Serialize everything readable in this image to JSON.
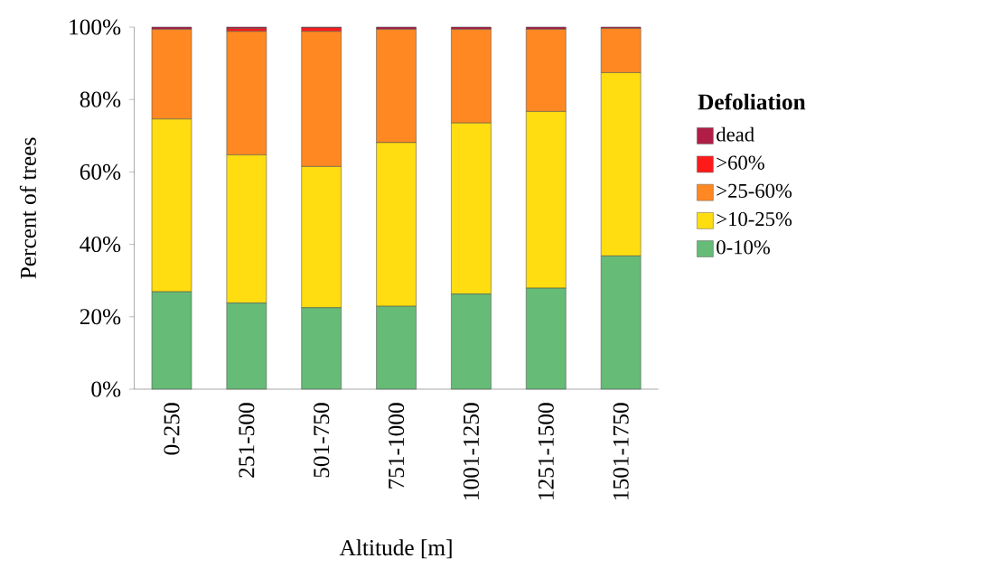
{
  "chart_data": {
    "type": "bar",
    "stacked": true,
    "xlabel": "Altitude [m]",
    "ylabel": "Percent of trees",
    "legend_title": "**Defoliation**",
    "categories": [
      "0-250",
      "251-500",
      "501-750",
      "751-1000",
      "1001-1250",
      "1251-1500",
      "1501-1750"
    ],
    "series": [
      {
        "name": "0-10%",
        "color": "#66bb77",
        "values": [
          26.9,
          23.8,
          22.5,
          22.9,
          26.3,
          27.9,
          36.8
        ]
      },
      {
        "name": ">10-25%",
        "color": "#ffdd11",
        "values": [
          47.7,
          40.9,
          39.0,
          45.2,
          47.2,
          48.8,
          50.6
        ]
      },
      {
        "name": ">25-60%",
        "color": "#ff8822",
        "values": [
          24.8,
          34.1,
          37.3,
          31.3,
          25.9,
          22.7,
          12.2
        ]
      },
      {
        "name": ">60%",
        "color": "#ff1a1a",
        "values": [
          0,
          0.8,
          1.0,
          0,
          0,
          0,
          0
        ]
      },
      {
        "name": "dead",
        "color": "#b01e48",
        "values": [
          0.6,
          0.4,
          0.2,
          0.6,
          0.6,
          0.6,
          0.4
        ]
      }
    ],
    "ylim": [
      0,
      100
    ],
    "yticks": [
      {
        "value": 0,
        "label": "0%"
      },
      {
        "value": 20,
        "label": "20%"
      },
      {
        "value": 40,
        "label": "40%"
      },
      {
        "value": 60,
        "label": "60%"
      },
      {
        "value": 80,
        "label": "80%"
      },
      {
        "value": 100,
        "label": "100%"
      }
    ],
    "grid": false,
    "legend": "right"
  }
}
